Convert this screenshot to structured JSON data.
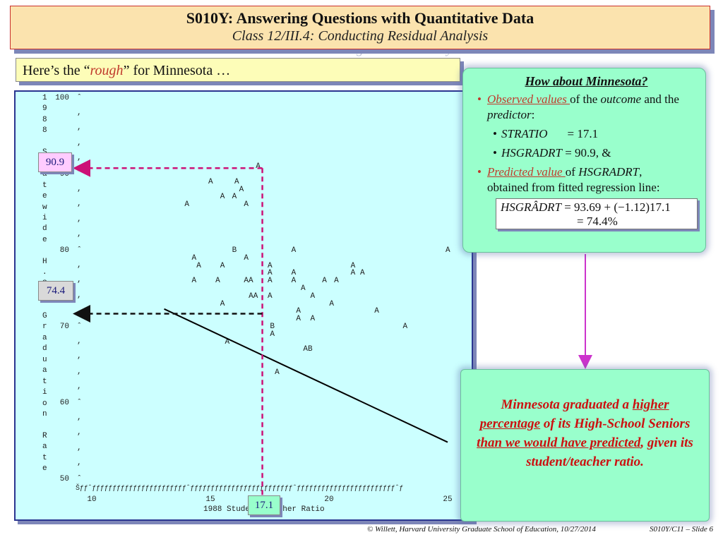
{
  "header": {
    "title": "S010Y: Answering Questions with Quantitative Data",
    "subtitle": "Class 12/III.4: Conducting Residual Analysis"
  },
  "caption": {
    "prefix": "Here’s the “",
    "emph": "rough",
    "suffix": "” for Minnesota …"
  },
  "chart_data": {
    "type": "scatter",
    "xlabel": "1988 Student/Teacher Ratio",
    "ylabel": "1988 Statewide H.S. Graduation Rate",
    "xlim": [
      10,
      25
    ],
    "ylim": [
      50,
      100
    ],
    "x_ticks": [
      "10",
      "15",
      "20",
      "25"
    ],
    "y_ticks": [
      "100",
      "90",
      "80",
      "70",
      "60",
      "50"
    ],
    "ylabel_chars": [
      "1",
      "9",
      "8",
      "8",
      "",
      "S",
      "t",
      "a",
      "t",
      "e",
      "w",
      "i",
      "d",
      "e",
      "",
      "H",
      ".",
      "S",
      ".",
      "",
      "G",
      "r",
      "a",
      "d",
      "u",
      "a",
      "t",
      "i",
      "o",
      "n",
      "",
      "R",
      "a",
      "t",
      "e"
    ],
    "x_axis_line": "Šƒƒˆƒƒƒƒƒƒƒƒƒƒƒƒƒƒƒƒƒƒƒƒƒƒƒˆƒƒƒƒƒƒƒƒƒƒƒƒƒƒƒƒƒƒƒƒƒƒƒƒƒˆƒƒƒƒƒƒƒƒƒƒƒƒƒƒƒƒƒƒƒƒƒƒƒƒˆƒ",
    "points": [
      {
        "x": 17.0,
        "y": 91.0,
        "m": "A"
      },
      {
        "x": 15.0,
        "y": 89.0,
        "m": "A"
      },
      {
        "x": 16.1,
        "y": 89.0,
        "m": "A"
      },
      {
        "x": 16.3,
        "y": 88.0,
        "m": "A"
      },
      {
        "x": 15.5,
        "y": 87.0,
        "m": "A"
      },
      {
        "x": 16.0,
        "y": 87.0,
        "m": "A"
      },
      {
        "x": 14.0,
        "y": 86.0,
        "m": "A"
      },
      {
        "x": 16.5,
        "y": 86.0,
        "m": "A"
      },
      {
        "x": 16.0,
        "y": 80.0,
        "m": "B"
      },
      {
        "x": 18.5,
        "y": 80.0,
        "m": "A"
      },
      {
        "x": 25.0,
        "y": 80.0,
        "m": "A"
      },
      {
        "x": 14.3,
        "y": 79.0,
        "m": "A"
      },
      {
        "x": 16.5,
        "y": 79.0,
        "m": "A"
      },
      {
        "x": 14.5,
        "y": 78.0,
        "m": "A"
      },
      {
        "x": 15.5,
        "y": 78.0,
        "m": "A"
      },
      {
        "x": 17.5,
        "y": 78.0,
        "m": "A"
      },
      {
        "x": 21.0,
        "y": 78.0,
        "m": "A"
      },
      {
        "x": 17.5,
        "y": 77.0,
        "m": "A"
      },
      {
        "x": 18.5,
        "y": 77.0,
        "m": "A"
      },
      {
        "x": 21.0,
        "y": 77.0,
        "m": "A"
      },
      {
        "x": 21.4,
        "y": 77.0,
        "m": "A"
      },
      {
        "x": 14.3,
        "y": 76.0,
        "m": "A"
      },
      {
        "x": 15.3,
        "y": 76.0,
        "m": "A"
      },
      {
        "x": 16.5,
        "y": 76.0,
        "m": "AA"
      },
      {
        "x": 17.5,
        "y": 76.0,
        "m": "A"
      },
      {
        "x": 18.5,
        "y": 76.0,
        "m": "A"
      },
      {
        "x": 19.8,
        "y": 76.0,
        "m": "A"
      },
      {
        "x": 20.3,
        "y": 76.0,
        "m": "A"
      },
      {
        "x": 18.9,
        "y": 75.0,
        "m": "A"
      },
      {
        "x": 16.7,
        "y": 74.0,
        "m": "AA"
      },
      {
        "x": 17.5,
        "y": 74.0,
        "m": "A"
      },
      {
        "x": 19.3,
        "y": 74.0,
        "m": "A"
      },
      {
        "x": 15.5,
        "y": 73.0,
        "m": "A"
      },
      {
        "x": 20.1,
        "y": 73.0,
        "m": "A"
      },
      {
        "x": 18.7,
        "y": 72.0,
        "m": "A"
      },
      {
        "x": 22.0,
        "y": 72.0,
        "m": "A"
      },
      {
        "x": 18.7,
        "y": 71.0,
        "m": "A"
      },
      {
        "x": 19.3,
        "y": 71.0,
        "m": "A"
      },
      {
        "x": 17.6,
        "y": 70.0,
        "m": "B"
      },
      {
        "x": 23.2,
        "y": 70.0,
        "m": "A"
      },
      {
        "x": 17.6,
        "y": 69.0,
        "m": "A"
      },
      {
        "x": 15.7,
        "y": 68.0,
        "m": "A"
      },
      {
        "x": 19.0,
        "y": 67.0,
        "m": "AB"
      },
      {
        "x": 17.8,
        "y": 64.0,
        "m": "A"
      }
    ],
    "fit_line": {
      "intercept": 93.69,
      "slope": -1.12
    },
    "highlight": {
      "x": 17.1,
      "observed": 90.9,
      "predicted": 74.4
    }
  },
  "tags": {
    "observed": "90.9",
    "predicted": "74.4",
    "predictor": "17.1"
  },
  "info": {
    "title": "How about Minnesota?",
    "b1_link": "Observed values ",
    "b1_a": "of the ",
    "b1_outcome": "outcome",
    "b1_b": " and the ",
    "b1_predictor": "predictor",
    "b1_c": ":",
    "s1_name": "STRATIO",
    "s1_val": "= 17.1",
    "s2_name": "HSGRADRT",
    "s2_val": " = 90.9, &",
    "b2_link": "Predicted value ",
    "b2_a": "of ",
    "b2_var": "HSGRADRT",
    "b2_b": ",",
    "b2_c": "obtained from fitted regression line:",
    "f_lhs": "HSGRÂDRT",
    "f_rhs1": "= 93.69 + (−1.12)17.1",
    "f_rhs2": "= 74.4%"
  },
  "conclusion": {
    "t1": "Minnesota graduated a ",
    "u1": "higher percentage",
    "t2": " of its High-School Seniors ",
    "u2": "than we would have predicted",
    "t3": ", given its student/teacher ratio."
  },
  "footer": {
    "left": "© Willett, Harvard University Graduate School of Education, 10/27/2014",
    "right": "S010Y/C11 – Slide 6"
  },
  "colors": {
    "title_bg": "#fbe3ae",
    "plot_bg": "#ccffff",
    "info_bg": "#99ffcc",
    "accent_red": "#c0392b",
    "dash_magenta": "#cc1177",
    "arrow_purple": "#cc33cc"
  }
}
